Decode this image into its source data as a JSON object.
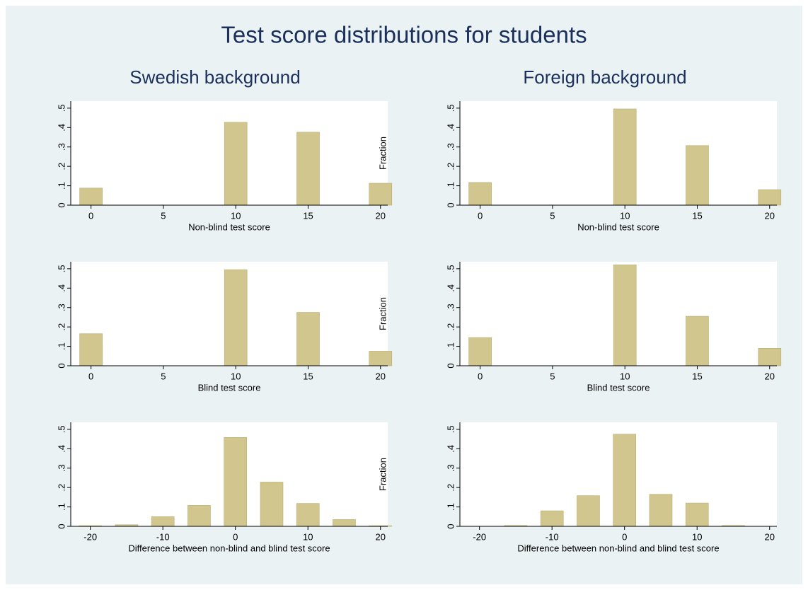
{
  "title": "Test score distributions for students",
  "column_titles": [
    "Swedish background",
    "Foreign background"
  ],
  "chart_data": [
    {
      "type": "bar",
      "x": [
        0,
        5,
        10,
        15,
        20
      ],
      "values": [
        0.088,
        0,
        0.427,
        0.376,
        0.113
      ],
      "color": "#d1c68d",
      "xlim": [
        -1.4,
        20.5
      ],
      "ylim": [
        0,
        0.536
      ],
      "xticks": [
        0,
        5,
        10,
        15,
        20
      ],
      "yticks": [
        0,
        {
          "value": 0.1,
          "label": ".1"
        },
        {
          "value": 0.2,
          "label": ".2"
        },
        {
          "value": 0.3,
          "label": ".3"
        },
        {
          "value": 0.4,
          "label": ".4"
        },
        {
          "value": 0.5,
          "label": ".5"
        }
      ],
      "xlabel": "Non-blind test score"
    },
    {
      "type": "bar",
      "x": [
        0,
        5,
        10,
        15,
        20
      ],
      "values": [
        0.117,
        0,
        0.496,
        0.307,
        0.08
      ],
      "color": "#d1c68d",
      "xlim": [
        -1.4,
        20.5
      ],
      "ylim": [
        0,
        0.536
      ],
      "xticks": [
        0,
        5,
        10,
        15,
        20
      ],
      "yticks": [
        0,
        {
          "value": 0.1,
          "label": ".1"
        },
        {
          "value": 0.2,
          "label": ".2"
        },
        {
          "value": 0.3,
          "label": ".3"
        },
        {
          "value": 0.4,
          "label": ".4"
        },
        {
          "value": 0.5,
          "label": ".5"
        }
      ],
      "xlabel": "Non-blind test score",
      "ylabel": "Fraction"
    },
    {
      "type": "bar",
      "x": [
        0,
        5,
        10,
        15,
        20
      ],
      "values": [
        0.165,
        0,
        0.495,
        0.275,
        0.075
      ],
      "color": "#d1c68d",
      "xlim": [
        -1.4,
        20.5
      ],
      "ylim": [
        0,
        0.536
      ],
      "xticks": [
        0,
        5,
        10,
        15,
        20
      ],
      "yticks": [
        0,
        {
          "value": 0.1,
          "label": ".1"
        },
        {
          "value": 0.2,
          "label": ".2"
        },
        {
          "value": 0.3,
          "label": ".3"
        },
        {
          "value": 0.4,
          "label": ".4"
        },
        {
          "value": 0.5,
          "label": ".5"
        }
      ],
      "xlabel": "Blind test score"
    },
    {
      "type": "bar",
      "x": [
        0,
        5,
        10,
        15,
        20
      ],
      "values": [
        0.145,
        0,
        0.52,
        0.255,
        0.09
      ],
      "color": "#d1c68d",
      "xlim": [
        -1.4,
        20.5
      ],
      "ylim": [
        0,
        0.536
      ],
      "xticks": [
        0,
        5,
        10,
        15,
        20
      ],
      "yticks": [
        0,
        {
          "value": 0.1,
          "label": ".1"
        },
        {
          "value": 0.2,
          "label": ".2"
        },
        {
          "value": 0.3,
          "label": ".3"
        },
        {
          "value": 0.4,
          "label": ".4"
        },
        {
          "value": 0.5,
          "label": ".5"
        }
      ],
      "xlabel": "Blind test score",
      "ylabel": "Fraction"
    },
    {
      "type": "bar",
      "x": [
        -20,
        -15,
        -10,
        -5,
        0,
        5,
        10,
        15,
        20
      ],
      "values": [
        0.003,
        0.008,
        0.05,
        0.108,
        0.458,
        0.228,
        0.118,
        0.035,
        0.003
      ],
      "color": "#d1c68d",
      "xlim": [
        -22.7,
        21
      ],
      "ylim": [
        0,
        0.536
      ],
      "xticks": [
        -20,
        -10,
        0,
        10,
        20
      ],
      "yticks": [
        0,
        {
          "value": 0.1,
          "label": ".1"
        },
        {
          "value": 0.2,
          "label": ".2"
        },
        {
          "value": 0.3,
          "label": ".3"
        },
        {
          "value": 0.4,
          "label": ".4"
        },
        {
          "value": 0.5,
          "label": ".5"
        }
      ],
      "xlabel": "Difference between  non-blind and blind test score"
    },
    {
      "type": "bar",
      "x": [
        -20,
        -15,
        -10,
        -5,
        0,
        5,
        10,
        15,
        20
      ],
      "values": [
        0,
        0.004,
        0.08,
        0.158,
        0.475,
        0.165,
        0.12,
        0.004,
        0
      ],
      "color": "#d1c68d",
      "xlim": [
        -22.7,
        21
      ],
      "ylim": [
        0,
        0.536
      ],
      "xticks": [
        -20,
        -10,
        0,
        10,
        20
      ],
      "yticks": [
        0,
        {
          "value": 0.1,
          "label": ".1"
        },
        {
          "value": 0.2,
          "label": ".2"
        },
        {
          "value": 0.3,
          "label": ".3"
        },
        {
          "value": 0.4,
          "label": ".4"
        },
        {
          "value": 0.5,
          "label": ".5"
        }
      ],
      "xlabel": "Difference between  non-blind and blind test score",
      "ylabel": "Fraction"
    }
  ]
}
